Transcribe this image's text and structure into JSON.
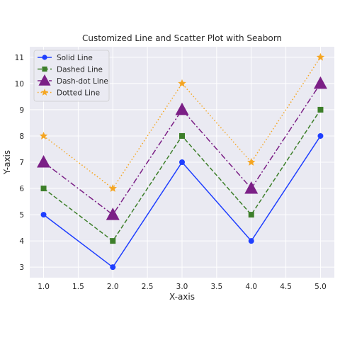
{
  "chart_data": {
    "type": "line",
    "title": "Customized Line and Scatter Plot with Seaborn",
    "xlabel": "X-axis",
    "ylabel": "Y-axis",
    "xlim": [
      0.8,
      5.2
    ],
    "ylim": [
      2.6,
      11.4
    ],
    "xticks": [
      1.0,
      1.5,
      2.0,
      2.5,
      3.0,
      3.5,
      4.0,
      4.5,
      5.0
    ],
    "yticks": [
      3,
      4,
      5,
      6,
      7,
      8,
      9,
      10,
      11
    ],
    "xtick_labels": [
      "1.0",
      "1.5",
      "2.0",
      "2.5",
      "3.0",
      "3.5",
      "4.0",
      "4.5",
      "5.0"
    ],
    "ytick_labels": [
      "3",
      "4",
      "5",
      "6",
      "7",
      "8",
      "9",
      "10",
      "11"
    ],
    "grid": true,
    "legend_position": "top-left",
    "x": [
      1,
      2,
      3,
      4,
      5
    ],
    "series": [
      {
        "name": "Solid Line",
        "values": [
          5,
          3,
          7,
          4,
          8
        ],
        "color": "#1f3fff",
        "line_style": "solid",
        "marker": "circle"
      },
      {
        "name": "Dashed Line",
        "values": [
          6,
          4,
          8,
          5,
          9
        ],
        "color": "#3d7f2a",
        "line_style": "dashed",
        "marker": "square"
      },
      {
        "name": "Dash-dot Line",
        "values": [
          7,
          5,
          9,
          6,
          10
        ],
        "color": "#7b1f86",
        "line_style": "dashdot",
        "marker": "triangle"
      },
      {
        "name": "Dotted Line",
        "values": [
          8,
          6,
          10,
          7,
          11
        ],
        "color": "#f5a623",
        "line_style": "dotted",
        "marker": "star"
      }
    ]
  }
}
